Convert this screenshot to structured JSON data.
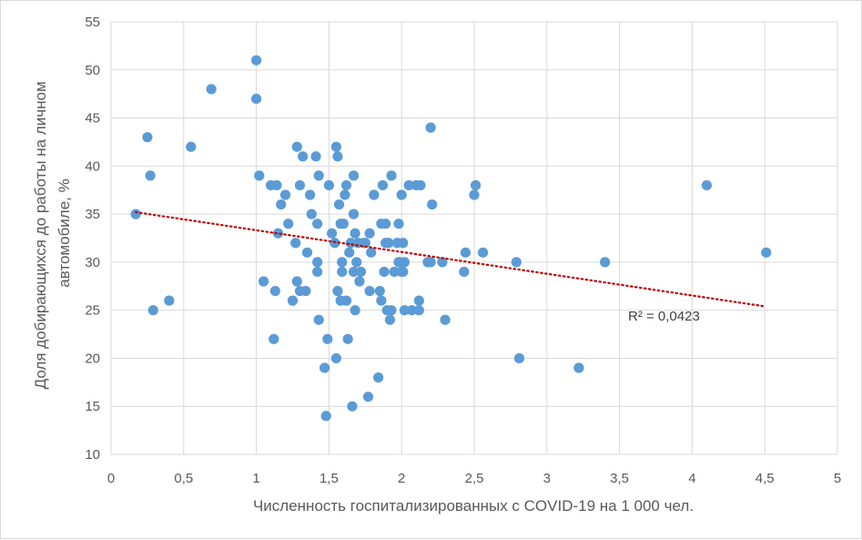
{
  "chart_data": {
    "type": "scatter",
    "xlabel": "Численность госпитализированных с COVID-19 на 1 000 чел.",
    "ylabel_lines": [
      "Доля добирающихся до работы на личном",
      "автомобиле, %"
    ],
    "xlim": [
      0,
      5
    ],
    "ylim": [
      10,
      55
    ],
    "x_ticks": [
      "0",
      "0,5",
      "1",
      "1,5",
      "2",
      "2,5",
      "3",
      "3,5",
      "4",
      "4,5",
      "5"
    ],
    "y_ticks": [
      "10",
      "15",
      "20",
      "25",
      "30",
      "35",
      "40",
      "45",
      "50",
      "55"
    ],
    "grid": true,
    "marker_color": "#5b9bd5",
    "trendline": {
      "type": "linear",
      "color": "#c00000",
      "style": "dotted",
      "x_start": 0.17,
      "y_start": 35.2,
      "x_end": 4.5,
      "y_end": 25.4,
      "label": "R² = 0,0423"
    },
    "points": [
      [
        0.17,
        35
      ],
      [
        0.25,
        43
      ],
      [
        0.27,
        39
      ],
      [
        0.29,
        25
      ],
      [
        0.4,
        26
      ],
      [
        0.55,
        42
      ],
      [
        0.69,
        48
      ],
      [
        1.0,
        51
      ],
      [
        1.0,
        47
      ],
      [
        1.02,
        39
      ],
      [
        1.05,
        28
      ],
      [
        1.1,
        38
      ],
      [
        1.12,
        22
      ],
      [
        1.13,
        27
      ],
      [
        1.14,
        38
      ],
      [
        1.15,
        33
      ],
      [
        1.17,
        36
      ],
      [
        1.2,
        37
      ],
      [
        1.22,
        34
      ],
      [
        1.25,
        26
      ],
      [
        1.27,
        32
      ],
      [
        1.28,
        42
      ],
      [
        1.28,
        28
      ],
      [
        1.3,
        38
      ],
      [
        1.3,
        27
      ],
      [
        1.32,
        41
      ],
      [
        1.34,
        27
      ],
      [
        1.35,
        31
      ],
      [
        1.37,
        37
      ],
      [
        1.38,
        35
      ],
      [
        1.41,
        41
      ],
      [
        1.42,
        30
      ],
      [
        1.42,
        29
      ],
      [
        1.42,
        34
      ],
      [
        1.43,
        39
      ],
      [
        1.43,
        24
      ],
      [
        1.47,
        19
      ],
      [
        1.48,
        14
      ],
      [
        1.49,
        22
      ],
      [
        1.5,
        38
      ],
      [
        1.52,
        33
      ],
      [
        1.54,
        32
      ],
      [
        1.55,
        42
      ],
      [
        1.55,
        20
      ],
      [
        1.56,
        41
      ],
      [
        1.56,
        27
      ],
      [
        1.57,
        36
      ],
      [
        1.58,
        34
      ],
      [
        1.58,
        26
      ],
      [
        1.59,
        30
      ],
      [
        1.59,
        29
      ],
      [
        1.6,
        34
      ],
      [
        1.61,
        37
      ],
      [
        1.62,
        38
      ],
      [
        1.62,
        26
      ],
      [
        1.63,
        22
      ],
      [
        1.64,
        31
      ],
      [
        1.65,
        32
      ],
      [
        1.66,
        15
      ],
      [
        1.67,
        39
      ],
      [
        1.67,
        35
      ],
      [
        1.67,
        29
      ],
      [
        1.68,
        33
      ],
      [
        1.68,
        25
      ],
      [
        1.69,
        30
      ],
      [
        1.7,
        32
      ],
      [
        1.71,
        28
      ],
      [
        1.72,
        29
      ],
      [
        1.74,
        32
      ],
      [
        1.75,
        32
      ],
      [
        1.77,
        16
      ],
      [
        1.78,
        33
      ],
      [
        1.78,
        27
      ],
      [
        1.79,
        31
      ],
      [
        1.81,
        37
      ],
      [
        1.84,
        18
      ],
      [
        1.85,
        27
      ],
      [
        1.86,
        34
      ],
      [
        1.86,
        26
      ],
      [
        1.87,
        38
      ],
      [
        1.88,
        29
      ],
      [
        1.89,
        32
      ],
      [
        1.89,
        34
      ],
      [
        1.9,
        25
      ],
      [
        1.91,
        32
      ],
      [
        1.92,
        24
      ],
      [
        1.93,
        25
      ],
      [
        1.93,
        39
      ],
      [
        1.95,
        29
      ],
      [
        1.97,
        32
      ],
      [
        1.98,
        34
      ],
      [
        1.98,
        30
      ],
      [
        1.99,
        30
      ],
      [
        2.0,
        29
      ],
      [
        2.0,
        37
      ],
      [
        2.01,
        32
      ],
      [
        2.01,
        29
      ],
      [
        2.02,
        25
      ],
      [
        2.02,
        30
      ],
      [
        2.05,
        38
      ],
      [
        2.07,
        25
      ],
      [
        2.1,
        38
      ],
      [
        2.12,
        26
      ],
      [
        2.12,
        25
      ],
      [
        2.13,
        38
      ],
      [
        2.18,
        30
      ],
      [
        2.2,
        44
      ],
      [
        2.21,
        36
      ],
      [
        2.2,
        30
      ],
      [
        2.28,
        30
      ],
      [
        2.3,
        24
      ],
      [
        2.43,
        29
      ],
      [
        2.44,
        31
      ],
      [
        2.5,
        37
      ],
      [
        2.51,
        38
      ],
      [
        2.56,
        31
      ],
      [
        2.79,
        30
      ],
      [
        2.81,
        20
      ],
      [
        3.22,
        19
      ],
      [
        3.4,
        30
      ],
      [
        4.1,
        38
      ],
      [
        4.51,
        31
      ]
    ]
  }
}
